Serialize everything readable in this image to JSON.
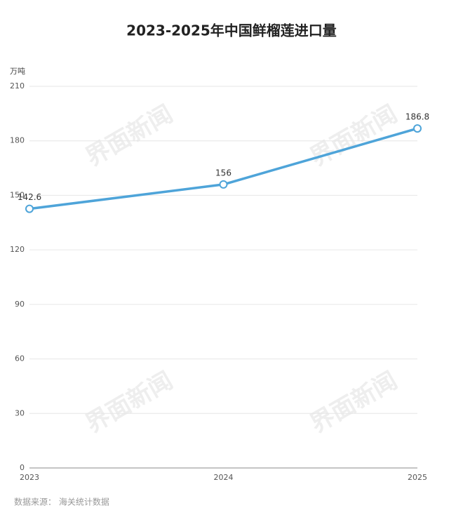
{
  "chart_data": {
    "type": "line",
    "title": "2023-2025年中国鲜榴莲进口量",
    "y_label": "万吨",
    "categories": [
      "2023",
      "2024",
      "2025"
    ],
    "series": [
      {
        "name": "进口量",
        "color": "#4ea4d9",
        "values": [
          142.6,
          156,
          186.8
        ]
      }
    ],
    "ylim": [
      0,
      210
    ],
    "yticks": [
      0,
      30,
      60,
      90,
      120,
      150,
      180,
      210
    ],
    "grid": true,
    "source": "数据来源：  海关统计数据",
    "watermark": "界面新闻"
  }
}
